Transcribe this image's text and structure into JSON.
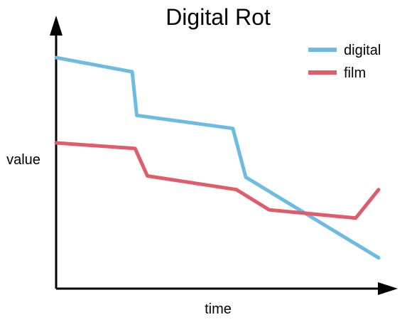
{
  "chart_data": {
    "type": "line",
    "title": "Digital Rot",
    "xlabel": "time",
    "ylabel": "value",
    "xlim": [
      0,
      100
    ],
    "ylim": [
      0,
      100
    ],
    "grid": false,
    "axis_ticks": false,
    "legend_position": "top-right",
    "series": [
      {
        "name": "digital",
        "color": "#6cbbe3",
        "x": [
          0,
          23.6,
          25.0,
          54.8,
          58.8,
          100
        ],
        "y": [
          90,
          84.5,
          67.5,
          62.4,
          43.4,
          12
        ]
      },
      {
        "name": "film",
        "color": "#df5c68",
        "x": [
          0,
          24.5,
          28.3,
          55.9,
          66.1,
          92.9,
          100
        ],
        "y": [
          56.8,
          54.6,
          43.9,
          38.6,
          30.7,
          27.5,
          38.6
        ]
      }
    ]
  }
}
